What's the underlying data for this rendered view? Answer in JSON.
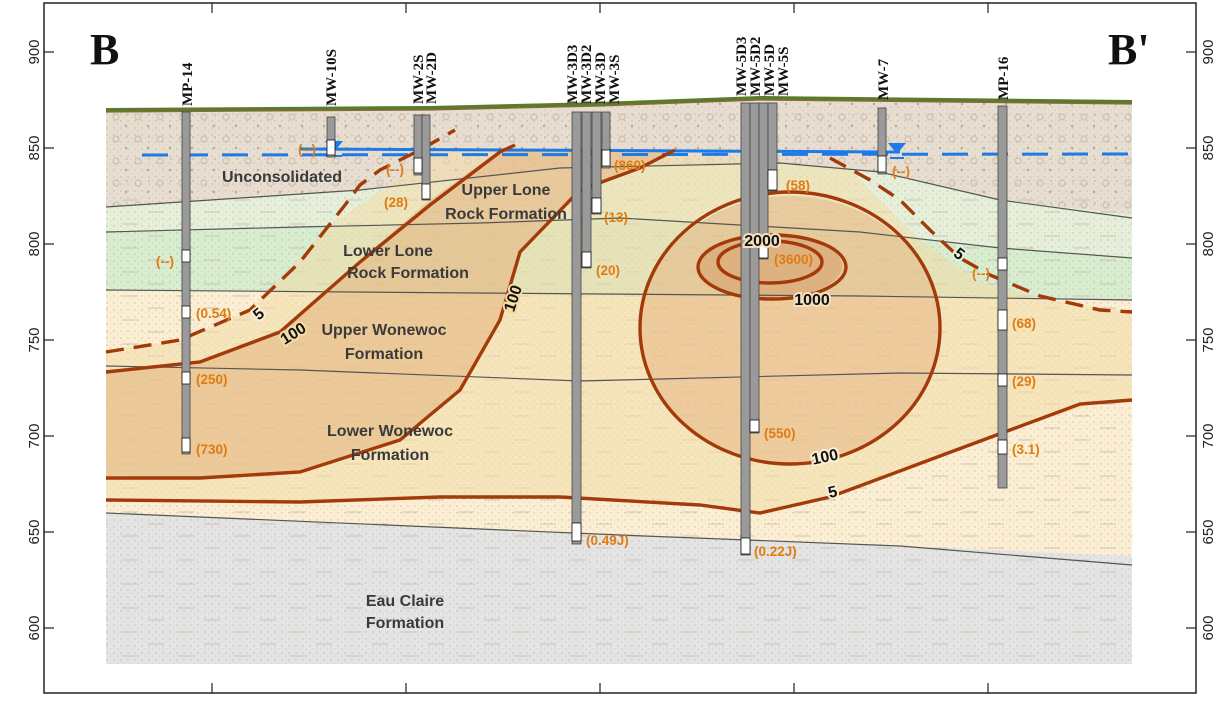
{
  "section": {
    "left_label": "B",
    "right_label": "B'"
  },
  "axis": {
    "elevation_ticks": [
      "900",
      "850",
      "800",
      "750",
      "700",
      "650",
      "600"
    ]
  },
  "wells": [
    {
      "id": "mp14",
      "labels": [
        "MP-14"
      ]
    },
    {
      "id": "mw10s",
      "labels": [
        "MW-10S"
      ]
    },
    {
      "id": "mw2",
      "labels": [
        "MW-2S",
        "MW-2D"
      ]
    },
    {
      "id": "mw3",
      "labels": [
        "MW-3D3",
        "MW-3D2",
        "MW-3D",
        "MW-3S"
      ]
    },
    {
      "id": "mw5",
      "labels": [
        "MW-5D3",
        "MW-5D2",
        "MW-5D",
        "MW-5S"
      ]
    },
    {
      "id": "mw7",
      "labels": [
        "MW-7"
      ]
    },
    {
      "id": "mp16",
      "labels": [
        "MP-16"
      ]
    }
  ],
  "units": {
    "unconsolidated": "Unconsolidated",
    "upper_lone_1": "Upper Lone",
    "upper_lone_2": "Rock Formation",
    "lower_lone_1": "Lower Lone",
    "lower_lone_2": "Rock Formation",
    "upper_wonewoc_1": "Upper Wonewoc",
    "upper_wonewoc_2": "Formation",
    "lower_wonewoc_1": "Lower Wonewoc",
    "lower_wonewoc_2": "Formation",
    "eau_claire_1": "Eau Claire",
    "eau_claire_2": "Formation"
  },
  "concentrations": [
    "(--)",
    "(--)",
    "(28)",
    "(--)",
    "(0.54)",
    "(250)",
    "(730)",
    "(860)",
    "(13)",
    "(20)",
    "(0.49J)",
    "(58)",
    "(3600)",
    "(550)",
    "(0.22J)",
    "(--)",
    "(--)",
    "(68)",
    "(29)",
    "(3.1)"
  ],
  "contour_labels": [
    "5",
    "100",
    "100",
    "2000",
    "1000",
    "100",
    "5",
    "5"
  ],
  "colors": {
    "unconsolidated": "#e7ddd0",
    "upper_lone": "#e6efd9",
    "lower_lone": "#d8eccf",
    "wonewoc": "#fbeed2",
    "eau_claire": "#e4e4e4",
    "plume_low": "#f6e3b8",
    "plume_mid": "#e9be8c",
    "contour": "#a33a0a",
    "water_table": "#1e7ae6",
    "ground": "#5b7a2a",
    "conc_text": "#e07b10"
  }
}
